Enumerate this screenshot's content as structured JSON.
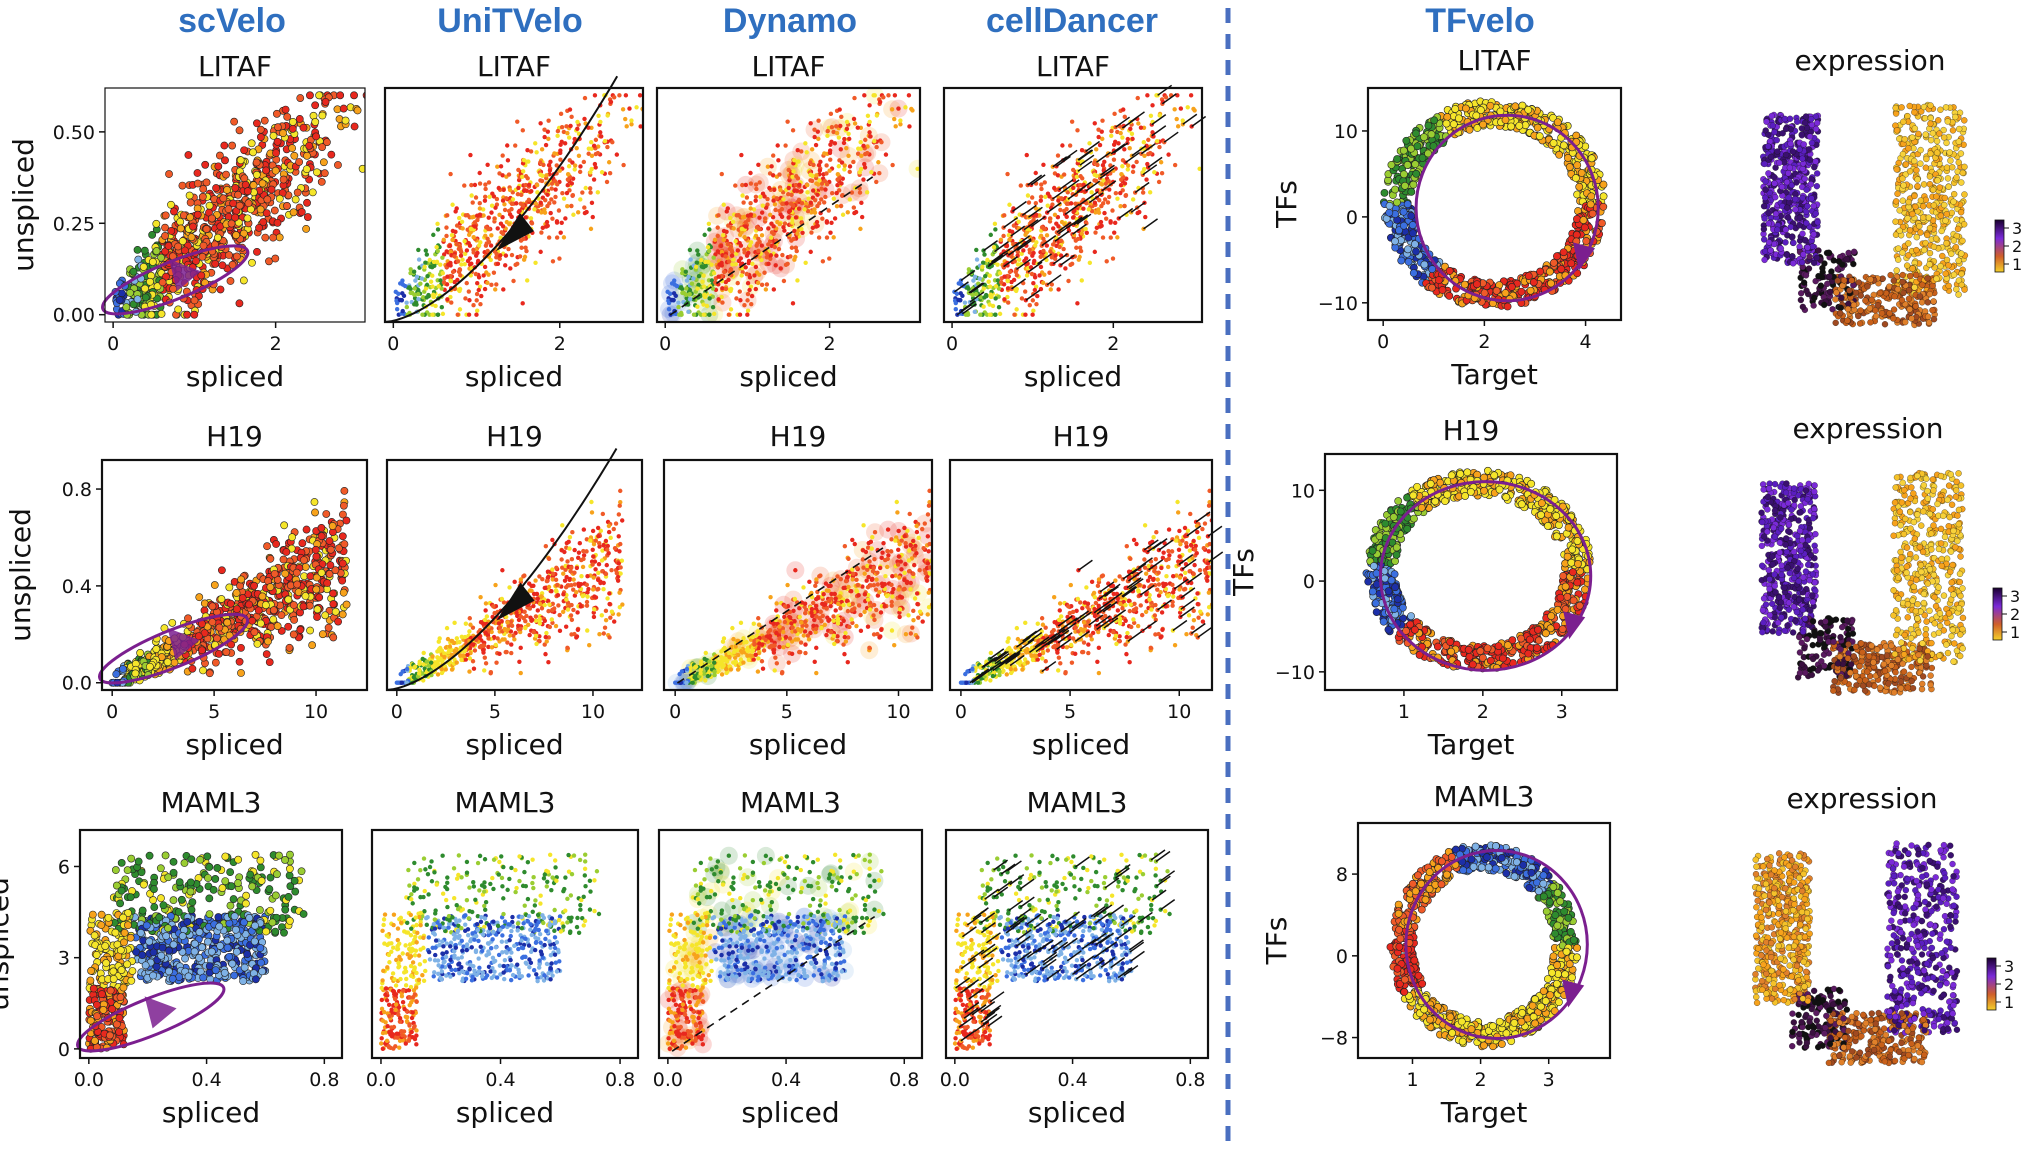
{
  "methods": [
    "scVelo",
    "UniTVelo",
    "Dynamo",
    "cellDancer",
    "TFvelo"
  ],
  "genes": [
    "LITAF",
    "H19",
    "MAML3"
  ],
  "expression_label": "expression",
  "colorbar_ticks": [
    "3",
    "2",
    "1"
  ],
  "colors": {
    "title_blue": "#2f6fbf",
    "divider": "#4a6fc0",
    "trajectory": "#7b1f8f",
    "palette": [
      "#1c2fa8",
      "#3b6fe0",
      "#7fb2e6",
      "#2e8b2e",
      "#9acd32",
      "#f5e52a",
      "#f7a21b",
      "#f05a28",
      "#e8281e"
    ]
  },
  "chart_data": [
    {
      "type": "scatter",
      "method": "scVelo",
      "title": "LITAF",
      "xlabel": "spliced",
      "ylabel": "unspliced",
      "xticks": [
        "0",
        "2"
      ],
      "yticks": [
        "0.00",
        "0.25",
        "0.50"
      ],
      "xlim": [
        -0.1,
        3.1
      ],
      "ylim": [
        -0.02,
        0.62
      ]
    },
    {
      "type": "scatter",
      "method": "UniTVelo",
      "title": "LITAF",
      "xlabel": "spliced",
      "ylabel": "",
      "xticks": [
        "0",
        "2"
      ],
      "yticks": [],
      "xlim": [
        -0.1,
        3.0
      ],
      "ylim": [
        -0.02,
        0.62
      ]
    },
    {
      "type": "scatter",
      "method": "Dynamo",
      "title": "LITAF",
      "xlabel": "spliced",
      "ylabel": "",
      "xticks": [
        "0",
        "2"
      ],
      "yticks": [],
      "xlim": [
        -0.1,
        3.1
      ],
      "ylim": [
        -0.02,
        0.62
      ]
    },
    {
      "type": "scatter",
      "method": "cellDancer",
      "title": "LITAF",
      "xlabel": "spliced",
      "ylabel": "",
      "xticks": [
        "0",
        "2"
      ],
      "yticks": [],
      "xlim": [
        -0.1,
        3.1
      ],
      "ylim": [
        -0.02,
        0.62
      ]
    },
    {
      "type": "scatter",
      "method": "TFvelo",
      "title": "LITAF",
      "xlabel": "Target",
      "ylabel": "TFs",
      "xticks": [
        "0",
        "2",
        "4"
      ],
      "yticks": [
        "−10",
        "0",
        "10"
      ],
      "xlim": [
        -0.3,
        4.7
      ],
      "ylim": [
        -12,
        15
      ]
    },
    {
      "type": "embedding",
      "title": "expression",
      "gene": "LITAF"
    },
    {
      "type": "scatter",
      "method": "scVelo",
      "title": "H19",
      "xlabel": "spliced",
      "ylabel": "unspliced",
      "xticks": [
        "0",
        "5",
        "10"
      ],
      "yticks": [
        "0.0",
        "0.4",
        "0.8"
      ],
      "xlim": [
        -0.5,
        12.5
      ],
      "ylim": [
        -0.03,
        0.92
      ]
    },
    {
      "type": "scatter",
      "method": "UniTVelo",
      "title": "H19",
      "xlabel": "spliced",
      "ylabel": "",
      "xticks": [
        "0",
        "5",
        "10"
      ],
      "yticks": [],
      "xlim": [
        -0.5,
        12.5
      ],
      "ylim": [
        -0.03,
        0.92
      ]
    },
    {
      "type": "scatter",
      "method": "Dynamo",
      "title": "H19",
      "xlabel": "spliced",
      "ylabel": "",
      "xticks": [
        "0",
        "5",
        "10"
      ],
      "yticks": [],
      "xlim": [
        -0.5,
        11.5
      ],
      "ylim": [
        -0.03,
        0.92
      ]
    },
    {
      "type": "scatter",
      "method": "cellDancer",
      "title": "H19",
      "xlabel": "spliced",
      "ylabel": "",
      "xticks": [
        "0",
        "5",
        "10"
      ],
      "yticks": [],
      "xlim": [
        -0.5,
        11.5
      ],
      "ylim": [
        -0.03,
        0.92
      ]
    },
    {
      "type": "scatter",
      "method": "TFvelo",
      "title": "H19",
      "xlabel": "Target",
      "ylabel": "TFs",
      "xticks": [
        "1",
        "2",
        "3"
      ],
      "yticks": [
        "−10",
        "0",
        "10"
      ],
      "xlim": [
        0.0,
        3.7
      ],
      "ylim": [
        -12,
        14
      ]
    },
    {
      "type": "embedding",
      "title": "expression",
      "gene": "H19"
    },
    {
      "type": "scatter",
      "method": "scVelo",
      "title": "MAML3",
      "xlabel": "spliced",
      "ylabel": "unspliced",
      "xticks": [
        "0.0",
        "0.4",
        "0.8"
      ],
      "yticks": [
        "0",
        "3",
        "6"
      ],
      "xlim": [
        -0.03,
        0.86
      ],
      "ylim": [
        -0.3,
        7.2
      ]
    },
    {
      "type": "scatter",
      "method": "UniTVelo",
      "title": "MAML3",
      "xlabel": "spliced",
      "ylabel": "",
      "xticks": [
        "0.0",
        "0.4",
        "0.8"
      ],
      "yticks": [],
      "xlim": [
        -0.03,
        0.86
      ],
      "ylim": [
        -0.3,
        7.2
      ]
    },
    {
      "type": "scatter",
      "method": "Dynamo",
      "title": "MAML3",
      "xlabel": "spliced",
      "ylabel": "",
      "xticks": [
        "0.0",
        "0.4",
        "0.8"
      ],
      "yticks": [],
      "xlim": [
        -0.03,
        0.86
      ],
      "ylim": [
        -0.3,
        7.2
      ]
    },
    {
      "type": "scatter",
      "method": "cellDancer",
      "title": "MAML3",
      "xlabel": "spliced",
      "ylabel": "",
      "xticks": [
        "0.0",
        "0.4",
        "0.8"
      ],
      "yticks": [],
      "xlim": [
        -0.03,
        0.86
      ],
      "ylim": [
        -0.3,
        7.2
      ]
    },
    {
      "type": "scatter",
      "method": "TFvelo",
      "title": "MAML3",
      "xlabel": "Target",
      "ylabel": "TFs",
      "xticks": [
        "1",
        "2",
        "3"
      ],
      "yticks": [
        "−8",
        "0",
        "8"
      ],
      "xlim": [
        0.2,
        3.9
      ],
      "ylim": [
        -10,
        13
      ]
    },
    {
      "type": "embedding",
      "title": "expression",
      "gene": "MAML3"
    }
  ]
}
